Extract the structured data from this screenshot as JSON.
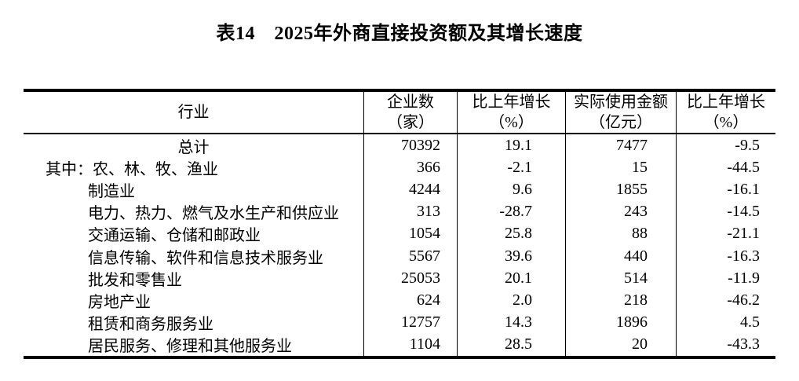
{
  "page": {
    "background": "#ffffff",
    "text_color": "#000000",
    "border_color": "#000000"
  },
  "title": "表14　2025年外商直接投资额及其增长速度",
  "table": {
    "headers": {
      "industry": "行业",
      "enterprises": "企业数\n（家）",
      "growth1": "比上年增长\n（%）",
      "amount": "实际使用金额\n（亿元）",
      "growth2": "比上年增长\n（%）"
    },
    "rows": [
      {
        "prefix": "",
        "industry": "总计",
        "align": "center",
        "enterprises": "70392",
        "growth1": "19.1",
        "amount": "7477",
        "growth2": "-9.5"
      },
      {
        "prefix": "其中：",
        "industry": "农、林、牧、渔业",
        "align": "left",
        "enterprises": "366",
        "growth1": "-2.1",
        "amount": "15",
        "growth2": "-44.5"
      },
      {
        "prefix": "",
        "industry": "制造业",
        "align": "left",
        "enterprises": "4244",
        "growth1": "9.6",
        "amount": "1855",
        "growth2": "-16.1"
      },
      {
        "prefix": "",
        "industry": "电力、热力、燃气及水生产和供应业",
        "align": "left",
        "enterprises": "313",
        "growth1": "-28.7",
        "amount": "243",
        "growth2": "-14.5"
      },
      {
        "prefix": "",
        "industry": "交通运输、仓储和邮政业",
        "align": "left",
        "enterprises": "1054",
        "growth1": "25.8",
        "amount": "88",
        "growth2": "-21.1"
      },
      {
        "prefix": "",
        "industry": "信息传输、软件和信息技术服务业",
        "align": "left",
        "enterprises": "5567",
        "growth1": "39.6",
        "amount": "440",
        "growth2": "-16.3"
      },
      {
        "prefix": "",
        "industry": "批发和零售业",
        "align": "left",
        "enterprises": "25053",
        "growth1": "20.1",
        "amount": "514",
        "growth2": "-11.9"
      },
      {
        "prefix": "",
        "industry": "房地产业",
        "align": "left",
        "enterprises": "624",
        "growth1": "2.0",
        "amount": "218",
        "growth2": "-46.2"
      },
      {
        "prefix": "",
        "industry": "租赁和商务服务业",
        "align": "left",
        "enterprises": "12757",
        "growth1": "14.3",
        "amount": "1896",
        "growth2": "4.5"
      },
      {
        "prefix": "",
        "industry": "居民服务、修理和其他服务业",
        "align": "left",
        "enterprises": "1104",
        "growth1": "28.5",
        "amount": "20",
        "growth2": "-43.3"
      }
    ]
  },
  "chart_data": {
    "type": "table",
    "title": "表14　2025年外商直接投资额及其增长速度",
    "columns": [
      "行业",
      "企业数（家）",
      "比上年增长（%）",
      "实际使用金额（亿元）",
      "比上年增长（%）"
    ],
    "rows": [
      [
        "总计",
        70392,
        19.1,
        7477,
        -9.5
      ],
      [
        "其中：农、林、牧、渔业",
        366,
        -2.1,
        15,
        -44.5
      ],
      [
        "制造业",
        4244,
        9.6,
        1855,
        -16.1
      ],
      [
        "电力、热力、燃气及水生产和供应业",
        313,
        -28.7,
        243,
        -14.5
      ],
      [
        "交通运输、仓储和邮政业",
        1054,
        25.8,
        88,
        -21.1
      ],
      [
        "信息传输、软件和信息技术服务业",
        5567,
        39.6,
        440,
        -16.3
      ],
      [
        "批发和零售业",
        25053,
        20.1,
        514,
        -11.9
      ],
      [
        "房地产业",
        624,
        2.0,
        218,
        -46.2
      ],
      [
        "租赁和商务服务业",
        12757,
        14.3,
        1896,
        4.5
      ],
      [
        "居民服务、修理和其他服务业",
        1104,
        28.5,
        20,
        -43.3
      ]
    ]
  }
}
